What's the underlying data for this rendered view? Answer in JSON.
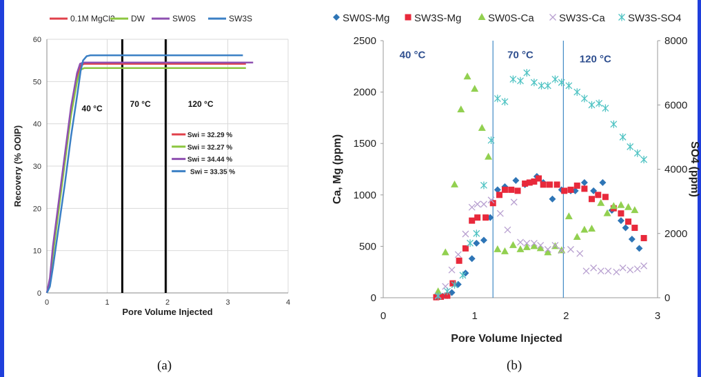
{
  "captions": {
    "a": "(a)",
    "b": "(b)"
  },
  "chart_data": [
    {
      "type": "line",
      "title": "",
      "xlabel": "Pore Volume Injected",
      "ylabel": "Recovery (% OOIP)",
      "xlim": [
        0,
        4
      ],
      "ylim": [
        0,
        60
      ],
      "xticks": [
        "0",
        "1",
        "2",
        "3",
        "4"
      ],
      "yticks": [
        "0",
        "10",
        "20",
        "30",
        "40",
        "50",
        "60"
      ],
      "grid": true,
      "legend": "top",
      "series": [
        {
          "name": "0.1M MgCl2",
          "color": "#e0404a",
          "x": [
            0,
            0.05,
            0.1,
            0.2,
            0.3,
            0.4,
            0.5,
            0.56,
            0.62,
            0.7,
            3.3
          ],
          "y": [
            0,
            3,
            10,
            21,
            32,
            43,
            51,
            53.8,
            54.2,
            54.2,
            54.2
          ]
        },
        {
          "name": "DW",
          "color": "#8cc63f",
          "x": [
            0,
            0.05,
            0.1,
            0.2,
            0.3,
            0.4,
            0.5,
            0.56,
            0.62,
            0.7,
            3.3
          ],
          "y": [
            0,
            2.5,
            9,
            20,
            31,
            42,
            50,
            52.8,
            53.2,
            53.2,
            53.2
          ]
        },
        {
          "name": "SW0S",
          "color": "#8e4fb0",
          "x": [
            0,
            0.05,
            0.1,
            0.2,
            0.3,
            0.4,
            0.5,
            0.55,
            0.6,
            0.7,
            3.42
          ],
          "y": [
            0,
            3.5,
            11,
            22,
            33,
            44,
            52,
            54.2,
            54.5,
            54.5,
            54.5
          ]
        },
        {
          "name": "SW3S",
          "color": "#3a7fc4",
          "x": [
            0,
            0.05,
            0.1,
            0.2,
            0.3,
            0.4,
            0.5,
            0.56,
            0.6,
            0.66,
            0.72,
            3.25
          ],
          "y": [
            0,
            1.5,
            6,
            16,
            26,
            37,
            46.5,
            52.5,
            55,
            56,
            56.2,
            56.2
          ]
        }
      ],
      "temperature_boundaries_x": [
        1.25,
        1.97
      ],
      "annotations": [
        "40 °C",
        "70 °C",
        "120 °C"
      ],
      "swi_legend": [
        {
          "text": "Swi = 32.29 %",
          "color": "#e0404a"
        },
        {
          "text": "Swi = 32.27 %",
          "color": "#8cc63f"
        },
        {
          "text": "Swi = 34.44 %",
          "color": "#8e4fb0"
        },
        {
          "text": "Swi = 33.35 %",
          "color": "#3a7fc4"
        }
      ]
    },
    {
      "type": "scatter",
      "title": "",
      "xlabel": "Pore Volume Injected",
      "ylabel": "Ca, Mg (ppm)",
      "y2label": "SO4 (ppm)",
      "xlim": [
        0,
        3
      ],
      "ylim": [
        0,
        2500
      ],
      "y2lim": [
        0,
        8000
      ],
      "xticks": [
        "0",
        "1",
        "2",
        "3"
      ],
      "yticks": [
        "0",
        "500",
        "1000",
        "1500",
        "2000",
        "2500"
      ],
      "y2ticks": [
        "0",
        "2000",
        "4000",
        "6000",
        "8000"
      ],
      "grid": false,
      "legend": "top",
      "temperature_boundaries_x": [
        1.2,
        1.97
      ],
      "annotations": [
        "40 °C",
        "70 °C",
        "120 °C"
      ],
      "series": [
        {
          "name": "SW0S-Mg",
          "color": "#2e75b6",
          "marker": "diamond",
          "axis": "left",
          "x": [
            0.6,
            0.65,
            0.7,
            0.75,
            0.82,
            0.9,
            0.97,
            1.02,
            1.1,
            1.17,
            1.25,
            1.33,
            1.45,
            1.55,
            1.68,
            1.75,
            1.85,
            1.95,
            2.05,
            2.1,
            2.2,
            2.3,
            2.4,
            2.5,
            2.6,
            2.65,
            2.72,
            2.8
          ],
          "y": [
            10,
            15,
            20,
            50,
            130,
            240,
            380,
            530,
            560,
            780,
            1050,
            1080,
            1140,
            1100,
            1180,
            1120,
            960,
            1050,
            1040,
            1040,
            1120,
            1040,
            1120,
            850,
            750,
            680,
            570,
            480
          ]
        },
        {
          "name": "SW3S-Mg",
          "color": "#e8293b",
          "marker": "square",
          "axis": "left",
          "x": [
            0.58,
            0.63,
            0.7,
            0.76,
            0.83,
            0.9,
            0.97,
            1.03,
            1.12,
            1.2,
            1.27,
            1.33,
            1.4,
            1.47,
            1.55,
            1.6,
            1.65,
            1.7,
            1.75,
            1.82,
            1.9,
            1.98,
            2.05,
            2.12,
            2.2,
            2.28,
            2.35,
            2.43,
            2.52,
            2.6,
            2.68,
            2.75,
            2.85
          ],
          "y": [
            5,
            10,
            20,
            140,
            360,
            480,
            750,
            780,
            780,
            920,
            1000,
            1050,
            1050,
            1040,
            1110,
            1120,
            1130,
            1160,
            1100,
            1100,
            1100,
            1040,
            1050,
            1090,
            1060,
            960,
            1000,
            980,
            870,
            820,
            740,
            680,
            580
          ]
        },
        {
          "name": "SW0S-Ca",
          "color": "#92d050",
          "marker": "triangle",
          "axis": "left",
          "x": [
            0.6,
            0.68,
            0.78,
            0.85,
            0.92,
            1.0,
            1.08,
            1.15,
            1.25,
            1.33,
            1.42,
            1.5,
            1.57,
            1.65,
            1.72,
            1.8,
            1.88,
            1.95,
            2.03,
            2.12,
            2.2,
            2.28,
            2.38,
            2.45,
            2.52,
            2.6,
            2.68,
            2.75
          ],
          "y": [
            60,
            440,
            1100,
            1830,
            2150,
            2030,
            1650,
            1370,
            470,
            450,
            510,
            470,
            490,
            500,
            480,
            440,
            500,
            460,
            790,
            590,
            660,
            670,
            920,
            820,
            890,
            900,
            880,
            850
          ]
        },
        {
          "name": "SW3S-Ca",
          "color": "#b8a0d0",
          "marker": "x",
          "axis": "left",
          "x": [
            0.6,
            0.68,
            0.75,
            0.82,
            0.9,
            0.97,
            1.03,
            1.1,
            1.18,
            1.28,
            1.36,
            1.43,
            1.5,
            1.57,
            1.65,
            1.72,
            1.8,
            1.88,
            1.95,
            2.05,
            2.15,
            2.22,
            2.3,
            2.38,
            2.46,
            2.55,
            2.62,
            2.7,
            2.78,
            2.85
          ],
          "y": [
            20,
            110,
            270,
            420,
            620,
            880,
            910,
            910,
            950,
            820,
            660,
            930,
            540,
            530,
            530,
            510,
            470,
            510,
            460,
            470,
            430,
            260,
            290,
            260,
            260,
            250,
            290,
            270,
            280,
            310
          ]
        },
        {
          "name": "SW3S-SO4",
          "color": "#4fc3c3",
          "marker": "asterisk",
          "axis": "right",
          "x": [
            0.6,
            0.7,
            0.78,
            0.87,
            0.95,
            1.02,
            1.1,
            1.18,
            1.25,
            1.33,
            1.42,
            1.5,
            1.57,
            1.65,
            1.73,
            1.8,
            1.88,
            1.95,
            2.03,
            2.12,
            2.2,
            2.28,
            2.36,
            2.43,
            2.52,
            2.62,
            2.7,
            2.78,
            2.85
          ],
          "y": [
            50,
            200,
            400,
            700,
            1700,
            2000,
            3500,
            4900,
            6200,
            6100,
            6800,
            6750,
            7000,
            6700,
            6600,
            6600,
            6800,
            6700,
            6600,
            6400,
            6200,
            6000,
            6050,
            5900,
            5400,
            5000,
            4700,
            4500,
            4300
          ]
        }
      ]
    }
  ]
}
